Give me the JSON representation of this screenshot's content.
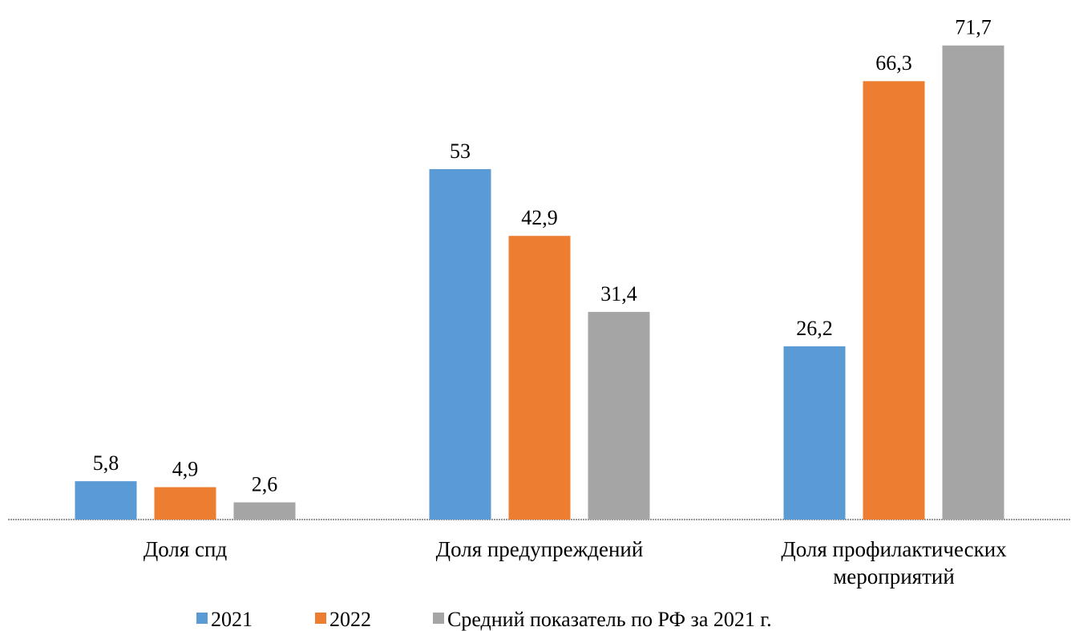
{
  "chart_data": {
    "type": "bar",
    "categories": [
      "Доля спд",
      "Доля предупреждений",
      "Доля профилактических мероприятий"
    ],
    "series": [
      {
        "name": "2021",
        "color": "#5b9bd5",
        "values": [
          5.8,
          53,
          26.2
        ],
        "value_labels": [
          "5,8",
          "53",
          "26,2"
        ]
      },
      {
        "name": "2022",
        "color": "#ed7d31",
        "values": [
          4.9,
          42.9,
          66.3
        ],
        "value_labels": [
          "4,9",
          "42,9",
          "66,3"
        ]
      },
      {
        "name": "Средний показатель по РФ за 2021 г.",
        "color": "#a5a5a5",
        "values": [
          2.6,
          31.4,
          71.7
        ],
        "value_labels": [
          "2,6",
          "31,4",
          "71,7"
        ]
      }
    ],
    "ylim": [
      0,
      77
    ],
    "legend": "bottom"
  }
}
